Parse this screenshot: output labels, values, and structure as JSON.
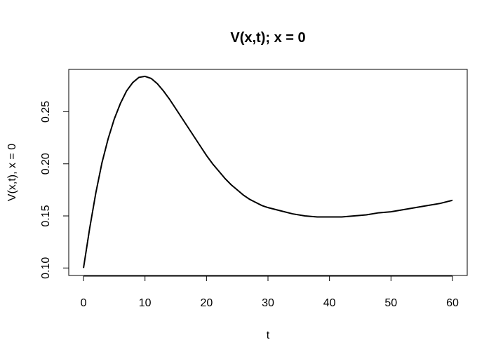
{
  "chart_data": {
    "type": "line",
    "title": "V(x,t); x = 0",
    "xlabel": "t",
    "ylabel": "V(x,t), x = 0",
    "xlim": [
      -2.4,
      62.4
    ],
    "ylim": [
      0.0928,
      0.2907
    ],
    "x_ticks": [
      0,
      10,
      20,
      30,
      40,
      50,
      60
    ],
    "y_ticks": [
      0.1,
      0.15,
      0.2,
      0.25
    ],
    "x_tick_labels": [
      "0",
      "10",
      "20",
      "30",
      "40",
      "50",
      "60"
    ],
    "y_tick_labels": [
      "0.10",
      "0.15",
      "0.20",
      "0.25"
    ],
    "grid": false,
    "colors": {
      "line": "#000000",
      "frame": "#000000",
      "background": "#ffffff"
    },
    "series": [
      {
        "x": [
          0,
          1,
          2,
          3,
          4,
          5,
          6,
          7,
          8,
          9,
          10,
          11,
          12,
          13,
          14,
          15,
          16,
          17,
          18,
          19,
          20,
          21,
          22,
          23,
          24,
          25,
          26,
          27,
          28,
          29,
          30,
          32,
          34,
          36,
          38,
          40,
          42,
          44,
          46,
          48,
          50,
          52,
          54,
          56,
          58,
          60
        ],
        "y": [
          0.1,
          0.138,
          0.172,
          0.201,
          0.224,
          0.243,
          0.258,
          0.27,
          0.278,
          0.283,
          0.284,
          0.282,
          0.277,
          0.27,
          0.262,
          0.253,
          0.244,
          0.235,
          0.226,
          0.217,
          0.208,
          0.2,
          0.193,
          0.186,
          0.18,
          0.175,
          0.17,
          0.166,
          0.163,
          0.16,
          0.158,
          0.155,
          0.152,
          0.15,
          0.149,
          0.149,
          0.149,
          0.15,
          0.151,
          0.153,
          0.154,
          0.156,
          0.158,
          0.16,
          0.162,
          0.165
        ]
      }
    ]
  }
}
